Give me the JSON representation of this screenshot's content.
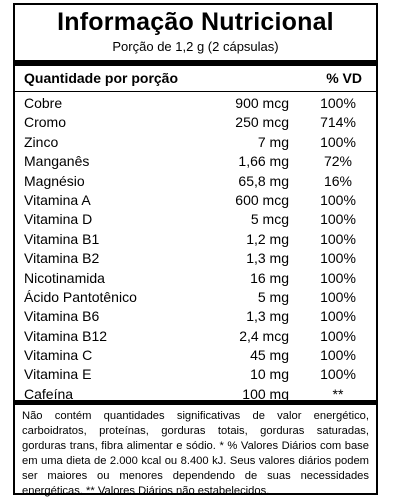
{
  "title": "Informação Nutricional",
  "serving": "Porção de 1,2 g (2 cápsulas)",
  "header": {
    "left": "Quantidade por porção",
    "right": "% VD"
  },
  "nutrients": [
    {
      "name": "Cobre",
      "amount": "900 mcg",
      "pct": "100%"
    },
    {
      "name": "Cromo",
      "amount": "250 mcg",
      "pct": "714%"
    },
    {
      "name": "Zinco",
      "amount": "7 mg",
      "pct": "100%"
    },
    {
      "name": "Manganês",
      "amount": "1,66 mg",
      "pct": "72%"
    },
    {
      "name": "Magnésio",
      "amount": "65,8 mg",
      "pct": "16%"
    },
    {
      "name": "Vitamina A",
      "amount": "600 mcg",
      "pct": "100%"
    },
    {
      "name": "Vitamina D",
      "amount": "5 mcg",
      "pct": "100%"
    },
    {
      "name": "Vitamina B1",
      "amount": "1,2 mg",
      "pct": "100%"
    },
    {
      "name": "Vitamina B2",
      "amount": "1,3 mg",
      "pct": "100%"
    },
    {
      "name": "Nicotinamida",
      "amount": "16 mg",
      "pct": "100%"
    },
    {
      "name": "Ácido Pantotênico",
      "amount": "5 mg",
      "pct": "100%"
    },
    {
      "name": "Vitamina B6",
      "amount": "1,3 mg",
      "pct": "100%"
    },
    {
      "name": "Vitamina B12",
      "amount": "2,4 mcg",
      "pct": "100%"
    },
    {
      "name": "Vitamina C",
      "amount": "45 mg",
      "pct": "100%"
    },
    {
      "name": "Vitamina E",
      "amount": "10 mg",
      "pct": "100%"
    },
    {
      "name": "Cafeína",
      "amount": "100 mg",
      "pct": "**"
    }
  ],
  "footnote": "Não contém quantidades significativas de valor energético, carboidratos, proteínas, gorduras totais, gorduras saturadas, gorduras trans, fibra alimentar e sódio. * % Valores Diários com base em uma dieta de 2.000 kcal ou 8.400 kJ. Seus valores diários podem ser maiores ou menores dependendo de suas necessidades energéticas. ** Valores Diários não estabelecidos."
}
